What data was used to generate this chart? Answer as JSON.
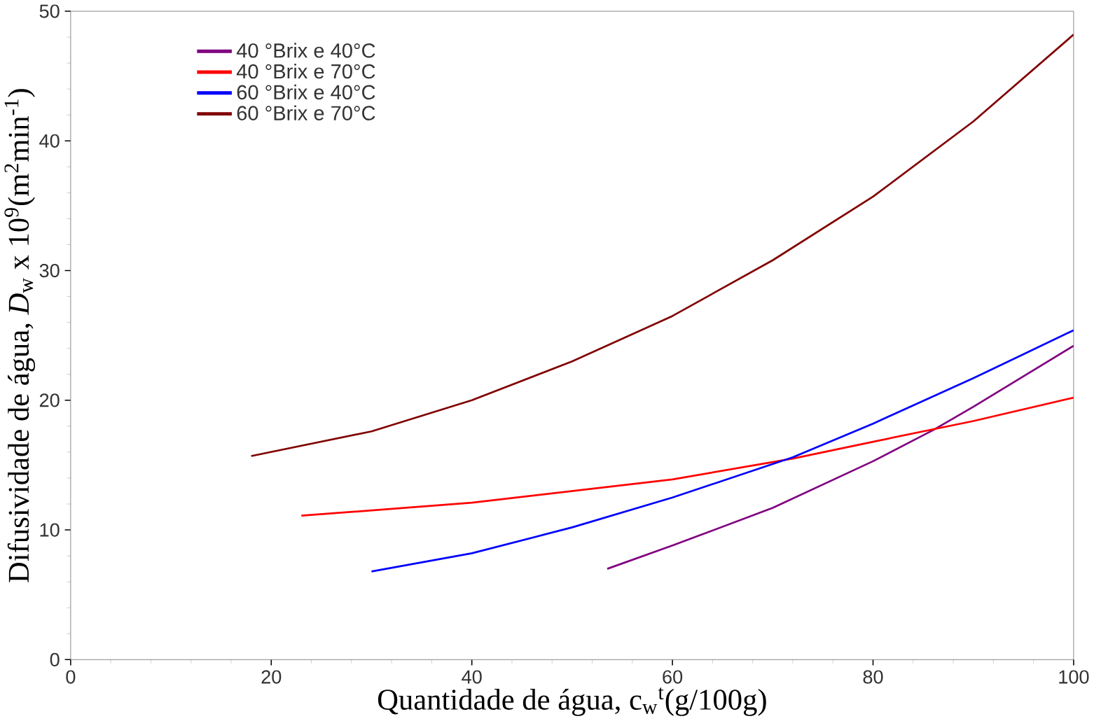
{
  "chart_data": {
    "type": "line",
    "xlabel": "Quantidade de água, c$_{w}$$^{t}$(g/100g)",
    "ylabel": "Difusividade de água, *D*$_{w}$ x 10$^{9}$(m$^{2}$min$^{-1}$)",
    "xlim": [
      0,
      100
    ],
    "ylim": [
      0,
      50
    ],
    "xticks": [
      0,
      20,
      40,
      60,
      80,
      100
    ],
    "yticks": [
      0,
      10,
      20,
      30,
      40,
      50
    ],
    "legend": "top left",
    "grid": false,
    "marker": "none",
    "line_style": "solid",
    "series": [
      {
        "name": "40 °Brix e 40°C",
        "color": "#800080",
        "x": [
          53.5,
          60,
          70,
          80,
          86,
          90,
          100
        ],
        "values": [
          7.0,
          8.8,
          11.7,
          15.3,
          17.7,
          19.5,
          24.2
        ]
      },
      {
        "name": "40 °Brix e 70°C",
        "color": "#ff0000",
        "x": [
          23,
          40,
          60,
          72,
          80,
          90,
          100
        ],
        "values": [
          11.1,
          12.1,
          13.9,
          15.5,
          16.8,
          18.4,
          20.2
        ]
      },
      {
        "name": "60 °Brix e 40°C",
        "color": "#0000ff",
        "x": [
          30,
          40,
          50,
          60,
          72,
          80,
          90,
          100
        ],
        "values": [
          6.8,
          8.2,
          10.2,
          12.5,
          15.6,
          18.2,
          21.7,
          25.4
        ]
      },
      {
        "name": "60 °Brix e 70°C",
        "color": "#800000",
        "x": [
          18,
          30,
          40,
          50,
          60,
          70,
          80,
          90,
          100
        ],
        "values": [
          15.7,
          17.6,
          20.0,
          23.0,
          26.5,
          30.8,
          35.7,
          41.5,
          48.2
        ]
      }
    ]
  }
}
